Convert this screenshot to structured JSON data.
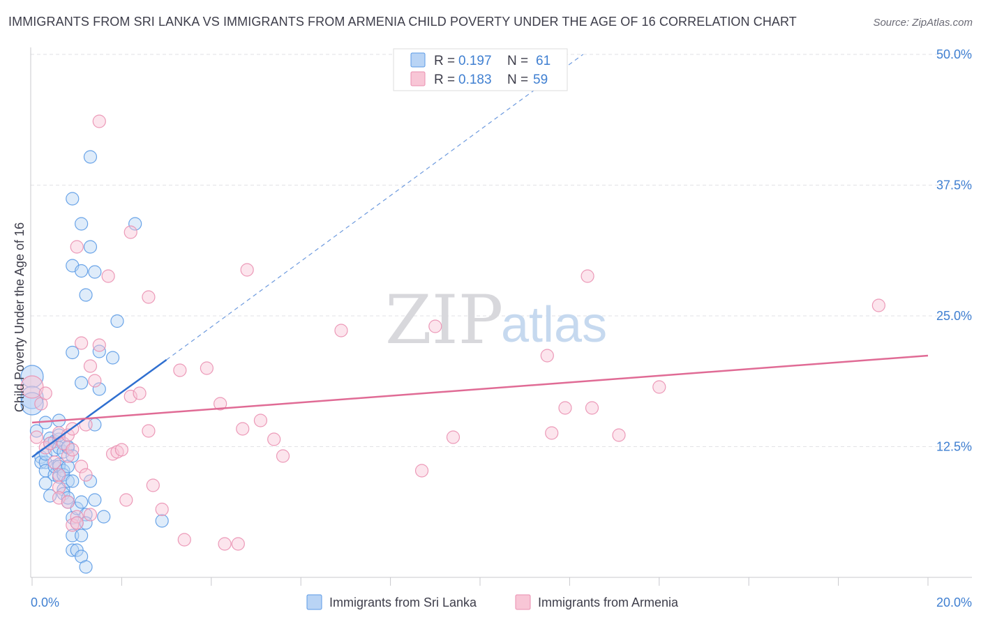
{
  "header": {
    "title": "IMMIGRANTS FROM SRI LANKA VS IMMIGRANTS FROM ARMENIA CHILD POVERTY UNDER THE AGE OF 16 CORRELATION CHART",
    "source": "Source: ZipAtlas.com"
  },
  "watermark": {
    "zip": "ZIP",
    "atlas": "atlas"
  },
  "legend": {
    "r_label": "R =",
    "n_label": "N =",
    "entries": [
      {
        "r": "0.197",
        "n": "61"
      },
      {
        "r": "0.183",
        "n": "59"
      }
    ]
  },
  "chart_data": {
    "type": "scatter",
    "title": "IMMIGRANTS FROM SRI LANKA VS IMMIGRANTS FROM ARMENIA CHILD POVERTY UNDER THE AGE OF 16 CORRELATION CHART",
    "xlabel": "",
    "ylabel": "Child Poverty Under the Age of 16",
    "xlim": [
      0,
      20
    ],
    "ylim": [
      0,
      50
    ],
    "x_tick_labels": [
      "0.0%",
      "20.0%"
    ],
    "y_ticks": [
      12.5,
      25.0,
      37.5,
      50.0
    ],
    "y_tick_labels": [
      "12.5%",
      "25.0%",
      "37.5%",
      "50.0%"
    ],
    "grid": true,
    "series": [
      {
        "name": "Immigrants from Sri Lanka",
        "color": "#5a9ae6",
        "fill": "#b9d4f5",
        "r": 0.197,
        "n": 61,
        "trend": {
          "x": [
            0.0,
            3.0
          ],
          "y": [
            11.5,
            20.8
          ],
          "line_color": "#2f6fd0"
        },
        "trend_extension": {
          "x": [
            3.0,
            12.3
          ],
          "y": [
            20.8,
            50.0
          ]
        },
        "points": [
          {
            "x": 0.0,
            "y": 19.2,
            "big": true
          },
          {
            "x": 0.0,
            "y": 17.2,
            "big": true
          },
          {
            "x": 0.0,
            "y": 16.6,
            "big": true
          },
          {
            "x": 0.1,
            "y": 14.0
          },
          {
            "x": 0.2,
            "y": 11.5
          },
          {
            "x": 0.2,
            "y": 11.0
          },
          {
            "x": 0.3,
            "y": 11.0
          },
          {
            "x": 0.3,
            "y": 9.0
          },
          {
            "x": 0.3,
            "y": 11.8
          },
          {
            "x": 0.3,
            "y": 14.8
          },
          {
            "x": 0.3,
            "y": 10.2
          },
          {
            "x": 0.4,
            "y": 13.3
          },
          {
            "x": 0.4,
            "y": 7.8
          },
          {
            "x": 0.4,
            "y": 12.8
          },
          {
            "x": 0.5,
            "y": 12.2
          },
          {
            "x": 0.5,
            "y": 13.0
          },
          {
            "x": 0.5,
            "y": 9.8
          },
          {
            "x": 0.5,
            "y": 10.6
          },
          {
            "x": 0.6,
            "y": 13.2
          },
          {
            "x": 0.6,
            "y": 10.8
          },
          {
            "x": 0.6,
            "y": 15.0
          },
          {
            "x": 0.6,
            "y": 9.6
          },
          {
            "x": 0.6,
            "y": 13.6
          },
          {
            "x": 0.6,
            "y": 12.4
          },
          {
            "x": 0.6,
            "y": 10.6
          },
          {
            "x": 0.7,
            "y": 10.2
          },
          {
            "x": 0.7,
            "y": 8.4
          },
          {
            "x": 0.7,
            "y": 9.8
          },
          {
            "x": 0.7,
            "y": 12.0
          },
          {
            "x": 0.7,
            "y": 8.0
          },
          {
            "x": 0.8,
            "y": 7.2
          },
          {
            "x": 0.8,
            "y": 12.4
          },
          {
            "x": 0.8,
            "y": 7.6
          },
          {
            "x": 0.8,
            "y": 10.6
          },
          {
            "x": 0.8,
            "y": 9.2
          },
          {
            "x": 0.8,
            "y": 12.5
          },
          {
            "x": 0.9,
            "y": 21.5
          },
          {
            "x": 0.9,
            "y": 11.6
          },
          {
            "x": 0.9,
            "y": 9.2
          },
          {
            "x": 0.9,
            "y": 36.2
          },
          {
            "x": 0.9,
            "y": 29.8
          },
          {
            "x": 0.9,
            "y": 4.0
          },
          {
            "x": 0.9,
            "y": 5.7
          },
          {
            "x": 0.9,
            "y": 2.6
          },
          {
            "x": 1.0,
            "y": 5.2
          },
          {
            "x": 1.0,
            "y": 6.6
          },
          {
            "x": 1.0,
            "y": 2.6
          },
          {
            "x": 1.1,
            "y": 33.8
          },
          {
            "x": 1.1,
            "y": 29.3
          },
          {
            "x": 1.1,
            "y": 18.6
          },
          {
            "x": 1.1,
            "y": 7.2
          },
          {
            "x": 1.1,
            "y": 4.0
          },
          {
            "x": 1.1,
            "y": 2.0
          },
          {
            "x": 1.2,
            "y": 6.0
          },
          {
            "x": 1.2,
            "y": 5.2
          },
          {
            "x": 1.2,
            "y": 27.0
          },
          {
            "x": 1.2,
            "y": 1.0
          },
          {
            "x": 1.3,
            "y": 40.2
          },
          {
            "x": 1.3,
            "y": 31.6
          },
          {
            "x": 1.3,
            "y": 9.2
          },
          {
            "x": 1.4,
            "y": 14.6
          },
          {
            "x": 1.4,
            "y": 29.2
          },
          {
            "x": 1.4,
            "y": 7.4
          },
          {
            "x": 1.5,
            "y": 18.0
          },
          {
            "x": 1.5,
            "y": 21.6
          },
          {
            "x": 1.6,
            "y": 5.8
          },
          {
            "x": 1.8,
            "y": 21.0
          },
          {
            "x": 1.9,
            "y": 24.5
          },
          {
            "x": 2.3,
            "y": 33.8
          },
          {
            "x": 2.9,
            "y": 5.4
          }
        ]
      },
      {
        "name": "Immigrants from Armenia",
        "color": "#ea8fb0",
        "fill": "#f8c6d6",
        "r": 0.183,
        "n": 59,
        "trend": {
          "x": [
            0.0,
            20.0
          ],
          "y": [
            14.8,
            21.2
          ],
          "line_color": "#e06b95"
        },
        "points": [
          {
            "x": 0.0,
            "y": 18.2,
            "big": true
          },
          {
            "x": 0.1,
            "y": 13.4
          },
          {
            "x": 0.2,
            "y": 16.6
          },
          {
            "x": 0.3,
            "y": 17.6
          },
          {
            "x": 0.3,
            "y": 12.4
          },
          {
            "x": 0.4,
            "y": 12.8
          },
          {
            "x": 0.5,
            "y": 11.0
          },
          {
            "x": 0.6,
            "y": 9.8
          },
          {
            "x": 0.6,
            "y": 13.8
          },
          {
            "x": 0.6,
            "y": 8.6
          },
          {
            "x": 0.6,
            "y": 7.6
          },
          {
            "x": 0.7,
            "y": 12.8
          },
          {
            "x": 0.8,
            "y": 13.6
          },
          {
            "x": 0.8,
            "y": 11.6
          },
          {
            "x": 0.8,
            "y": 7.2
          },
          {
            "x": 0.9,
            "y": 14.2
          },
          {
            "x": 0.9,
            "y": 12.2
          },
          {
            "x": 0.9,
            "y": 5.0
          },
          {
            "x": 1.0,
            "y": 31.6
          },
          {
            "x": 1.0,
            "y": 5.8
          },
          {
            "x": 1.0,
            "y": 5.2
          },
          {
            "x": 1.1,
            "y": 22.4
          },
          {
            "x": 1.1,
            "y": 10.6
          },
          {
            "x": 1.2,
            "y": 14.6
          },
          {
            "x": 1.2,
            "y": 9.8
          },
          {
            "x": 1.3,
            "y": 20.2
          },
          {
            "x": 1.3,
            "y": 6.0
          },
          {
            "x": 1.4,
            "y": 18.8
          },
          {
            "x": 1.5,
            "y": 22.2
          },
          {
            "x": 1.5,
            "y": 43.6
          },
          {
            "x": 1.7,
            "y": 28.8
          },
          {
            "x": 1.8,
            "y": 11.8
          },
          {
            "x": 1.9,
            "y": 12.0
          },
          {
            "x": 2.0,
            "y": 12.2
          },
          {
            "x": 2.1,
            "y": 7.4
          },
          {
            "x": 2.2,
            "y": 33.0
          },
          {
            "x": 2.2,
            "y": 17.3
          },
          {
            "x": 2.4,
            "y": 17.6
          },
          {
            "x": 2.6,
            "y": 26.8
          },
          {
            "x": 2.6,
            "y": 14.0
          },
          {
            "x": 2.7,
            "y": 8.8
          },
          {
            "x": 2.9,
            "y": 6.5
          },
          {
            "x": 3.3,
            "y": 19.8
          },
          {
            "x": 3.4,
            "y": 3.6
          },
          {
            "x": 3.9,
            "y": 20.0
          },
          {
            "x": 4.2,
            "y": 16.6
          },
          {
            "x": 4.3,
            "y": 3.2
          },
          {
            "x": 4.6,
            "y": 3.2
          },
          {
            "x": 4.7,
            "y": 14.2
          },
          {
            "x": 4.8,
            "y": 29.4
          },
          {
            "x": 5.1,
            "y": 15.0
          },
          {
            "x": 5.4,
            "y": 13.2
          },
          {
            "x": 5.6,
            "y": 11.6
          },
          {
            "x": 6.9,
            "y": 23.6
          },
          {
            "x": 8.7,
            "y": 10.2
          },
          {
            "x": 9.0,
            "y": 24.0
          },
          {
            "x": 9.4,
            "y": 13.4
          },
          {
            "x": 11.5,
            "y": 21.2
          },
          {
            "x": 11.6,
            "y": 13.8
          },
          {
            "x": 11.9,
            "y": 16.2
          },
          {
            "x": 12.4,
            "y": 28.8
          },
          {
            "x": 12.5,
            "y": 16.2
          },
          {
            "x": 13.1,
            "y": 13.6
          },
          {
            "x": 14.0,
            "y": 18.2
          },
          {
            "x": 18.9,
            "y": 26.0
          }
        ]
      }
    ]
  }
}
